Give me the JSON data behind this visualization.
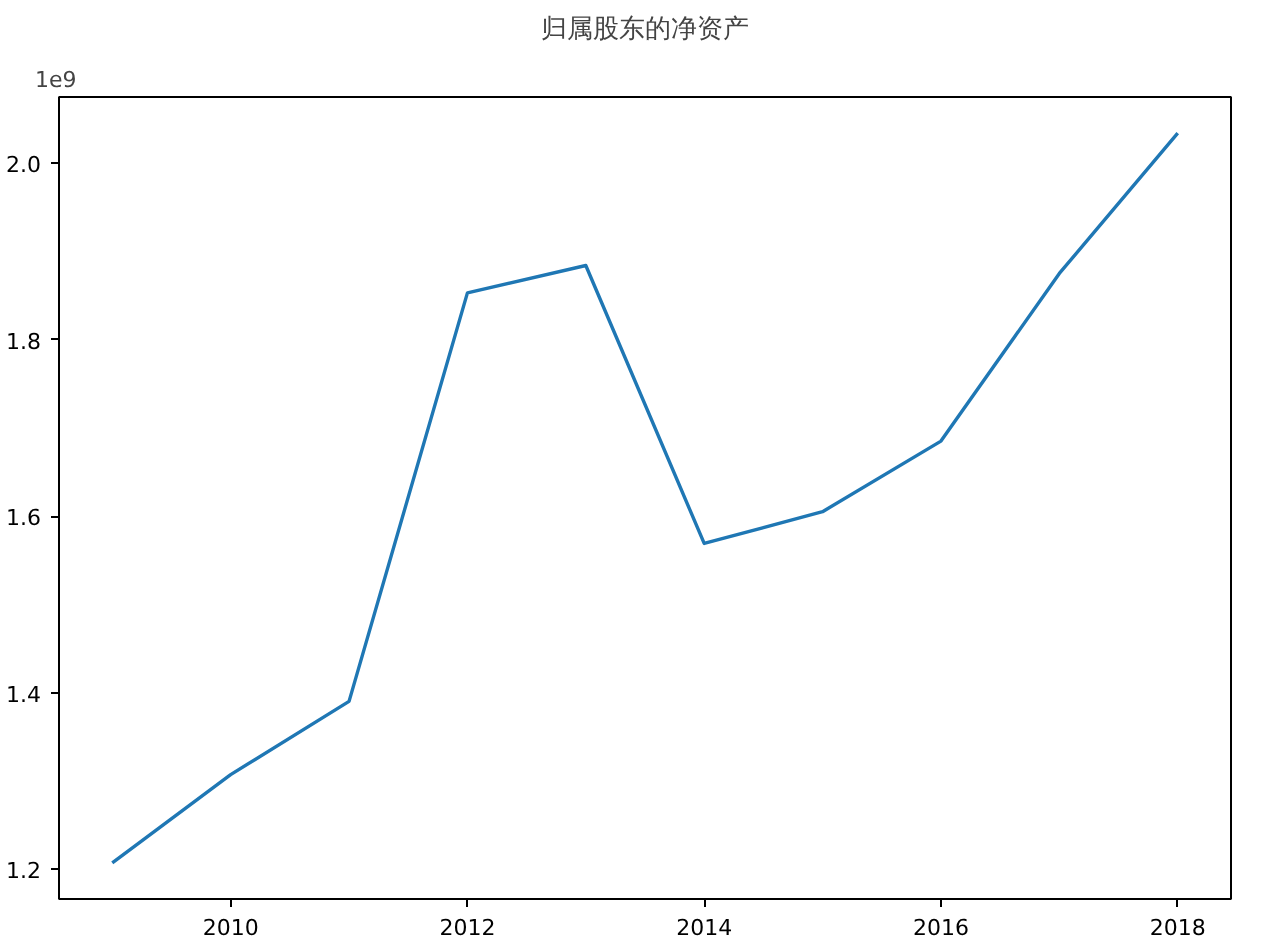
{
  "chart_data": {
    "type": "line",
    "title": "归属股东的净资产",
    "x": [
      2009,
      2010,
      2011,
      2012,
      2013,
      2014,
      2015,
      2016,
      2017,
      2018
    ],
    "series": [
      {
        "color": "#1f77b4",
        "values": [
          1.207,
          1.307,
          1.39,
          1.853,
          1.884,
          1.569,
          1.605,
          1.685,
          1.875,
          2.034
        ]
      }
    ],
    "xlim": [
      2008.55,
      2018.45
    ],
    "xticks": [
      2010,
      2012,
      2014,
      2016,
      2018
    ],
    "ylim": [
      1.166,
      2.075
    ],
    "yticks": [
      1.2,
      1.4,
      1.6,
      1.8,
      {
        "value": 2,
        "label": "2.0"
      }
    ],
    "annotations": [
      "1e9"
    ],
    "line_style": "solid"
  }
}
